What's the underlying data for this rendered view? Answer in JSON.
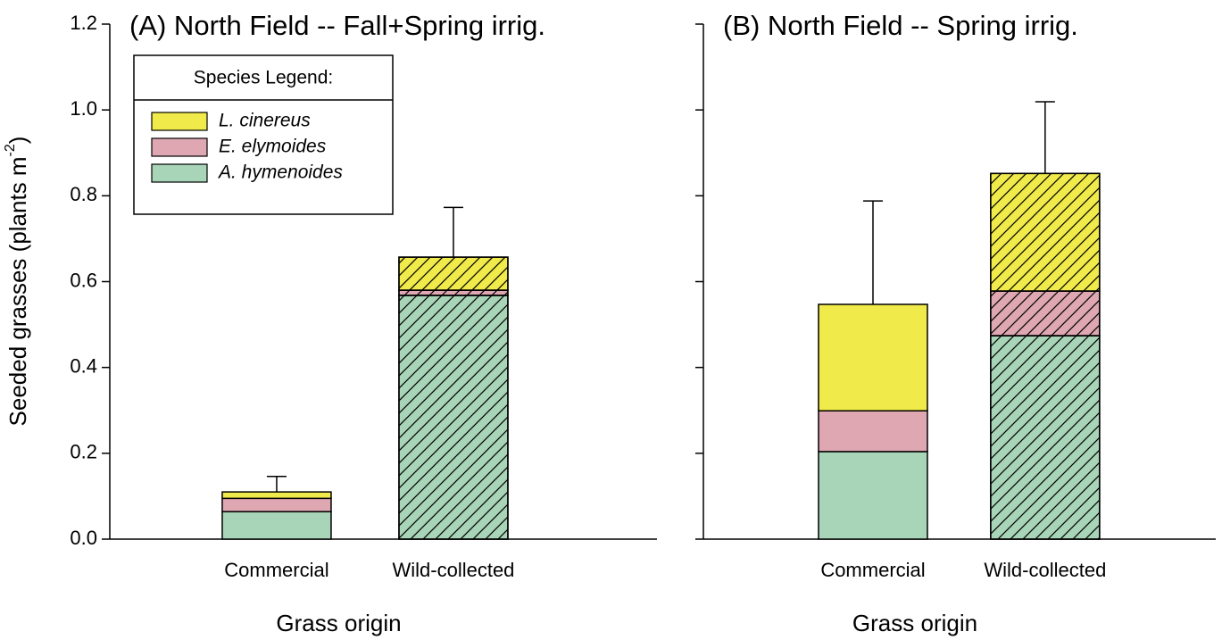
{
  "chart_data": [
    {
      "type": "bar",
      "stacked": true,
      "title": "(A) North Field -- Fall+Spring irrig.",
      "xlabel": "Grass origin",
      "ylabel": "Seeded grasses (plants m",
      "ylabel_sup": "-2",
      "ylabel_end": ")",
      "categories": [
        "Commercial",
        "Wild-collected"
      ],
      "hatched": [
        false,
        true
      ],
      "series": [
        {
          "name": "A. hymenoides",
          "color": "#a8d4b8",
          "values": [
            0.064,
            0.568
          ]
        },
        {
          "name": "E. elymoides",
          "color": "#dea7b2",
          "values": [
            0.031,
            0.012
          ]
        },
        {
          "name": "L. cinereus",
          "color": "#f0ea4a",
          "values": [
            0.015,
            0.077
          ]
        }
      ],
      "errors": [
        0.036,
        0.116
      ],
      "ylim": [
        0,
        1.2
      ],
      "yticks": [
        {
          "value": 0,
          "label": "0.0"
        },
        0.2,
        0.4,
        0.6,
        0.8,
        {
          "value": 1,
          "label": "1.0"
        },
        1.2
      ],
      "show_ytick_labels": true,
      "legend": {
        "title": "Species Legend:",
        "position": "upper left"
      }
    },
    {
      "type": "bar",
      "stacked": true,
      "title": "(B) North Field -- Spring irrig.",
      "xlabel": "Grass origin",
      "categories": [
        "Commercial",
        "Wild-collected"
      ],
      "hatched": [
        false,
        true
      ],
      "series": [
        {
          "name": "A. hymenoides",
          "color": "#a8d4b8",
          "values": [
            0.204,
            0.474
          ]
        },
        {
          "name": "E. elymoides",
          "color": "#dea7b2",
          "values": [
            0.095,
            0.104
          ]
        },
        {
          "name": "L. cinereus",
          "color": "#f0ea4a",
          "values": [
            0.248,
            0.274
          ]
        }
      ],
      "errors": [
        0.241,
        0.167
      ],
      "ylim": [
        0,
        1.2
      ],
      "yticks": [
        0,
        0.2,
        0.4,
        0.6,
        0.8,
        1,
        1.2
      ],
      "show_ytick_labels": false
    }
  ]
}
